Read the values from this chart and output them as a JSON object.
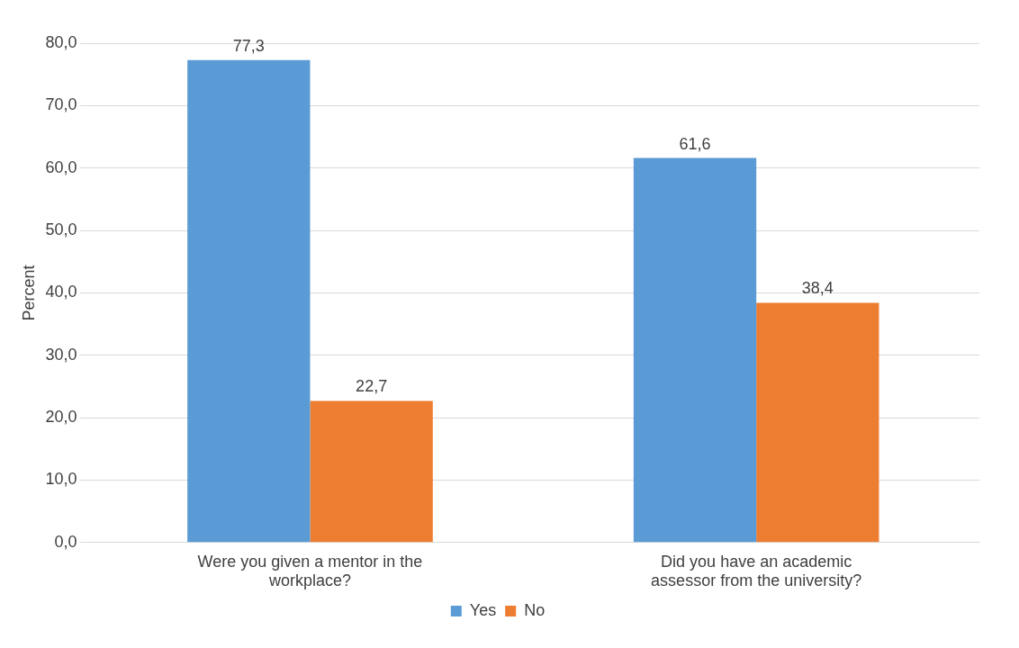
{
  "chart_data": {
    "type": "bar",
    "ylabel": "Percent",
    "categories": [
      "Were you given a mentor in the workplace?",
      "Did you have an academic assessor from the university?"
    ],
    "series": [
      {
        "name": "Yes",
        "color": "#5b9bd5",
        "values": [
          77.3,
          61.6
        ],
        "value_labels": [
          "77,3",
          "61,6"
        ]
      },
      {
        "name": "No",
        "color": "#ed7d31",
        "values": [
          22.7,
          38.4
        ],
        "value_labels": [
          "22,7",
          "38,4"
        ]
      }
    ],
    "ylim": [
      0,
      80
    ],
    "yticks": [
      {
        "value": 0,
        "label": "0,0"
      },
      {
        "value": 10,
        "label": "10,0"
      },
      {
        "value": 20,
        "label": "20,0"
      },
      {
        "value": 30,
        "label": "30,0"
      },
      {
        "value": 40,
        "label": "40,0"
      },
      {
        "value": 50,
        "label": "50,0"
      },
      {
        "value": 60,
        "label": "60,0"
      },
      {
        "value": 70,
        "label": "70,0"
      },
      {
        "value": 80,
        "label": "80,0"
      }
    ],
    "grid": "y",
    "legend": "bottom"
  }
}
